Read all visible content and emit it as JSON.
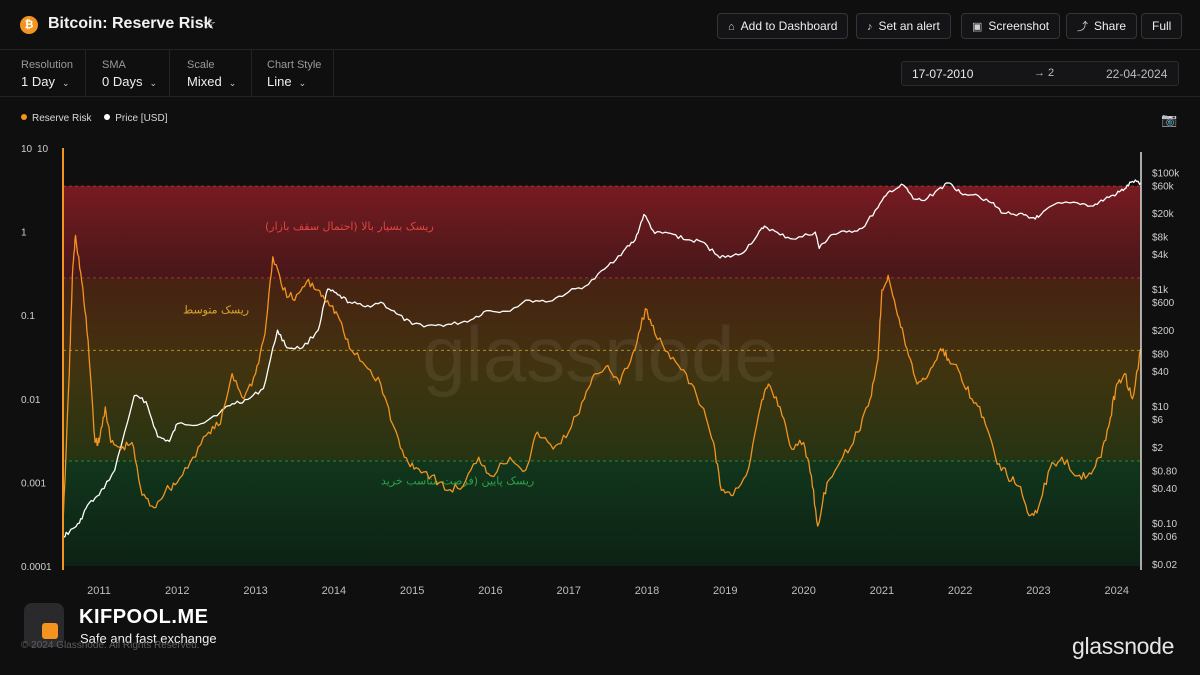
{
  "header": {
    "brand_icon": "₿",
    "title": "Bitcoin: Reserve Risk",
    "star_icon": "☆",
    "buttons": [
      {
        "icon": "⌂",
        "label": "Add to Dashboard"
      },
      {
        "icon": "♪",
        "label": "Set an alert"
      },
      {
        "icon": "▣",
        "label": "Screenshot"
      },
      {
        "icon": "⤴",
        "label": "Share"
      },
      {
        "icon": "",
        "label": "Full"
      }
    ]
  },
  "controls": [
    {
      "label": "Resolution",
      "value": "1 Day"
    },
    {
      "label": "SMA",
      "value": "0 Days"
    },
    {
      "label": "Scale",
      "value": "Mixed"
    },
    {
      "label": "Chart Style",
      "value": "Line"
    }
  ],
  "date_range": {
    "start": "17-07-2010",
    "arrow": "→ 2",
    "end": "22-04-2024"
  },
  "legend": [
    {
      "name": "Reserve Risk",
      "color": "#f2941f"
    },
    {
      "name": "Price [USD]",
      "color": "#ffffff"
    }
  ],
  "watermark": "glassnode",
  "footer": {
    "kifpool_name": "KIFPOOL.ME",
    "kifpool_tag": "Safe and fast exchange",
    "copyright": "© 2024 Glassnode. All Rights Reserved.",
    "glassnode_logo": "glassnode"
  },
  "colors": {
    "reserve_risk": "#f2941f",
    "price": "#ffffff",
    "high_zone": "#8a1d24",
    "mid_zone": "#6e4a10",
    "low_zone": "#103a1e"
  },
  "chart_data": {
    "type": "line",
    "x_range": [
      2010.54,
      2024.31
    ],
    "x_ticks": [
      "2011",
      "2012",
      "2013",
      "2014",
      "2015",
      "2016",
      "2017",
      "2018",
      "2019",
      "2020",
      "2021",
      "2022",
      "2023",
      "2024"
    ],
    "left_axis": {
      "scale": "log",
      "range": [
        0.0001,
        10
      ],
      "top_label": "10",
      "ticks": [
        "10",
        "1",
        "0.1",
        "0.01",
        "0.001",
        "0.0001"
      ]
    },
    "right_axis": {
      "scale": "log",
      "range": [
        0.02,
        150000
      ],
      "ticks": [
        "$100k",
        "$60k",
        "$20k",
        "$8k",
        "$4k",
        "$1k",
        "$600",
        "$200",
        "$80",
        "$40",
        "$10",
        "$6",
        "$2",
        "$0.80",
        "$0.40",
        "$0.10",
        "$0.06",
        "$0.02"
      ],
      "tick_values": [
        100000,
        60000,
        20000,
        8000,
        4000,
        1000,
        600,
        200,
        80,
        40,
        10,
        6,
        2,
        0.8,
        0.4,
        0.1,
        0.06,
        0.02
      ]
    },
    "zones": [
      {
        "label": "ریسک بسیار بالا (احتمال سقف بازار)",
        "from": 0.28,
        "to": 3.5,
        "color": "#8a1d24"
      },
      {
        "label": "ریسک متوسط",
        "from": 0.0018,
        "to": 0.28,
        "color": "#6e4a10"
      },
      {
        "label": "ریسک پایین (فرصت مناسب خرید",
        "from": 0.0001,
        "to": 0.0018,
        "color": "#103a1e"
      }
    ],
    "thresholds": [
      3.5,
      0.28,
      0.038,
      0.0018
    ],
    "series": [
      {
        "name": "Reserve Risk",
        "color": "#f2941f",
        "axis": "left",
        "points": [
          [
            2010.54,
            0.0003
          ],
          [
            2010.62,
            0.02
          ],
          [
            2010.66,
            0.3
          ],
          [
            2010.7,
            0.9
          ],
          [
            2010.78,
            0.25
          ],
          [
            2010.86,
            0.05
          ],
          [
            2010.95,
            0.003
          ],
          [
            2011.0,
            0.003
          ],
          [
            2011.08,
            0.008
          ],
          [
            2011.15,
            0.003
          ],
          [
            2011.28,
            0.0025
          ],
          [
            2011.42,
            0.003
          ],
          [
            2011.55,
            0.0007
          ],
          [
            2011.7,
            0.0005
          ],
          [
            2011.85,
            0.0008
          ],
          [
            2012.0,
            0.001
          ],
          [
            2012.2,
            0.002
          ],
          [
            2012.4,
            0.004
          ],
          [
            2012.55,
            0.005
          ],
          [
            2012.7,
            0.02
          ],
          [
            2012.85,
            0.01
          ],
          [
            2013.0,
            0.02
          ],
          [
            2013.12,
            0.06
          ],
          [
            2013.22,
            0.5
          ],
          [
            2013.35,
            0.2
          ],
          [
            2013.5,
            0.15
          ],
          [
            2013.65,
            0.25
          ],
          [
            2013.8,
            0.2
          ],
          [
            2013.92,
            0.15
          ],
          [
            2014.05,
            0.1
          ],
          [
            2014.2,
            0.04
          ],
          [
            2014.4,
            0.025
          ],
          [
            2014.6,
            0.015
          ],
          [
            2014.75,
            0.005
          ],
          [
            2014.9,
            0.002
          ],
          [
            2015.05,
            0.0015
          ],
          [
            2015.25,
            0.0012
          ],
          [
            2015.45,
            0.0008
          ],
          [
            2015.65,
            0.0009
          ],
          [
            2015.85,
            0.002
          ],
          [
            2016.0,
            0.0012
          ],
          [
            2016.25,
            0.002
          ],
          [
            2016.45,
            0.0014
          ],
          [
            2016.6,
            0.004
          ],
          [
            2016.8,
            0.0025
          ],
          [
            2017.0,
            0.004
          ],
          [
            2017.2,
            0.01
          ],
          [
            2017.35,
            0.02
          ],
          [
            2017.5,
            0.025
          ],
          [
            2017.65,
            0.015
          ],
          [
            2017.85,
            0.04
          ],
          [
            2017.98,
            0.12
          ],
          [
            2018.1,
            0.06
          ],
          [
            2018.3,
            0.03
          ],
          [
            2018.5,
            0.02
          ],
          [
            2018.7,
            0.008
          ],
          [
            2018.85,
            0.003
          ],
          [
            2018.95,
            0.0008
          ],
          [
            2019.1,
            0.0007
          ],
          [
            2019.3,
            0.0015
          ],
          [
            2019.45,
            0.008
          ],
          [
            2019.55,
            0.015
          ],
          [
            2019.7,
            0.008
          ],
          [
            2019.85,
            0.0025
          ],
          [
            2020.0,
            0.003
          ],
          [
            2020.1,
            0.0012
          ],
          [
            2020.18,
            0.0003
          ],
          [
            2020.3,
            0.001
          ],
          [
            2020.5,
            0.002
          ],
          [
            2020.7,
            0.004
          ],
          [
            2020.85,
            0.01
          ],
          [
            2020.95,
            0.03
          ],
          [
            2021.0,
            0.2
          ],
          [
            2021.08,
            0.3
          ],
          [
            2021.2,
            0.1
          ],
          [
            2021.32,
            0.04
          ],
          [
            2021.45,
            0.015
          ],
          [
            2021.6,
            0.02
          ],
          [
            2021.75,
            0.04
          ],
          [
            2021.85,
            0.03
          ],
          [
            2022.0,
            0.02
          ],
          [
            2022.15,
            0.01
          ],
          [
            2022.3,
            0.006
          ],
          [
            2022.45,
            0.002
          ],
          [
            2022.6,
            0.0012
          ],
          [
            2022.75,
            0.0009
          ],
          [
            2022.88,
            0.0004
          ],
          [
            2023.0,
            0.0005
          ],
          [
            2023.15,
            0.0015
          ],
          [
            2023.3,
            0.002
          ],
          [
            2023.5,
            0.0012
          ],
          [
            2023.65,
            0.0013
          ],
          [
            2023.8,
            0.002
          ],
          [
            2023.92,
            0.006
          ],
          [
            2024.0,
            0.015
          ],
          [
            2024.1,
            0.02
          ],
          [
            2024.2,
            0.01
          ],
          [
            2024.31,
            0.04
          ]
        ]
      },
      {
        "name": "Price [USD]",
        "color": "#ffffff",
        "axis": "right",
        "points": [
          [
            2010.54,
            0.06
          ],
          [
            2010.62,
            0.07
          ],
          [
            2010.75,
            0.1
          ],
          [
            2010.85,
            0.2
          ],
          [
            2011.0,
            0.3
          ],
          [
            2011.2,
            0.8
          ],
          [
            2011.45,
            15
          ],
          [
            2011.6,
            12
          ],
          [
            2011.75,
            3
          ],
          [
            2011.9,
            2.5
          ],
          [
            2012.0,
            5
          ],
          [
            2012.3,
            5
          ],
          [
            2012.55,
            8
          ],
          [
            2012.7,
            11
          ],
          [
            2012.9,
            13
          ],
          [
            2013.1,
            20
          ],
          [
            2013.28,
            200
          ],
          [
            2013.4,
            100
          ],
          [
            2013.6,
            100
          ],
          [
            2013.8,
            200
          ],
          [
            2013.92,
            1000
          ],
          [
            2014.05,
            800
          ],
          [
            2014.2,
            600
          ],
          [
            2014.4,
            500
          ],
          [
            2014.6,
            600
          ],
          [
            2014.8,
            380
          ],
          [
            2015.0,
            250
          ],
          [
            2015.3,
            240
          ],
          [
            2015.5,
            250
          ],
          [
            2015.75,
            300
          ],
          [
            2015.95,
            430
          ],
          [
            2016.2,
            420
          ],
          [
            2016.5,
            650
          ],
          [
            2016.75,
            620
          ],
          [
            2017.0,
            900
          ],
          [
            2017.25,
            1200
          ],
          [
            2017.5,
            2500
          ],
          [
            2017.7,
            4500
          ],
          [
            2017.85,
            7000
          ],
          [
            2017.96,
            19000
          ],
          [
            2018.1,
            9000
          ],
          [
            2018.3,
            9000
          ],
          [
            2018.5,
            7000
          ],
          [
            2018.7,
            6500
          ],
          [
            2018.9,
            3800
          ],
          [
            2019.0,
            3500
          ],
          [
            2019.2,
            4000
          ],
          [
            2019.4,
            8000
          ],
          [
            2019.5,
            12000
          ],
          [
            2019.7,
            8500
          ],
          [
            2019.9,
            7200
          ],
          [
            2020.15,
            9500
          ],
          [
            2020.2,
            5000
          ],
          [
            2020.35,
            8500
          ],
          [
            2020.55,
            9500
          ],
          [
            2020.75,
            11000
          ],
          [
            2020.95,
            25000
          ],
          [
            2021.1,
            48000
          ],
          [
            2021.28,
            60000
          ],
          [
            2021.4,
            35000
          ],
          [
            2021.55,
            33000
          ],
          [
            2021.75,
            55000
          ],
          [
            2021.87,
            65000
          ],
          [
            2022.0,
            45000
          ],
          [
            2022.2,
            42000
          ],
          [
            2022.4,
            30000
          ],
          [
            2022.55,
            20000
          ],
          [
            2022.75,
            19500
          ],
          [
            2022.88,
            16500
          ],
          [
            2023.0,
            17000
          ],
          [
            2023.2,
            28000
          ],
          [
            2023.5,
            30000
          ],
          [
            2023.7,
            26500
          ],
          [
            2023.85,
            35000
          ],
          [
            2024.0,
            43000
          ],
          [
            2024.1,
            52000
          ],
          [
            2024.2,
            70000
          ],
          [
            2024.31,
            66000
          ]
        ]
      }
    ]
  }
}
